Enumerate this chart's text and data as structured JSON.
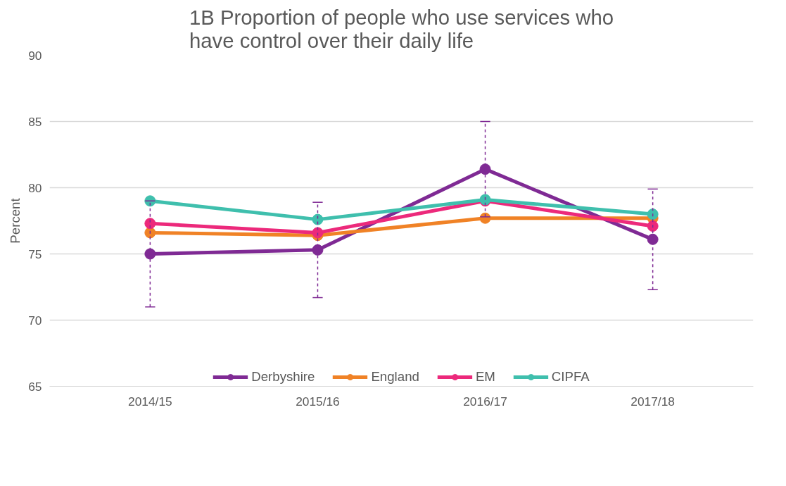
{
  "chart_data": {
    "type": "line",
    "title": "1B Proportion of people who use services who have control over their daily life",
    "ylabel": "Percent",
    "categories": [
      "2014/15",
      "2015/16",
      "2016/17",
      "2017/18"
    ],
    "series": [
      {
        "name": "Derbyshire",
        "color": "#7f2a94",
        "values": [
          75.0,
          75.3,
          81.4,
          76.1
        ],
        "errors": [
          [
            71.0,
            79.0
          ],
          [
            71.7,
            78.9
          ],
          [
            77.8,
            85.0
          ],
          [
            72.3,
            79.9
          ]
        ]
      },
      {
        "name": "England",
        "color": "#f08226",
        "values": [
          76.6,
          76.4,
          77.7,
          77.7
        ]
      },
      {
        "name": "EM",
        "color": "#ec297b",
        "values": [
          77.3,
          76.6,
          79.0,
          77.1
        ]
      },
      {
        "name": "CIPFA",
        "color": "#3fbfad",
        "values": [
          79.0,
          77.6,
          79.1,
          78.0
        ]
      }
    ],
    "ylim": [
      65,
      90
    ],
    "yticks": [
      65,
      70,
      75,
      80,
      85,
      90
    ],
    "grid": "y",
    "legend": "bottom",
    "marker": "circle",
    "line_style": "solid"
  }
}
